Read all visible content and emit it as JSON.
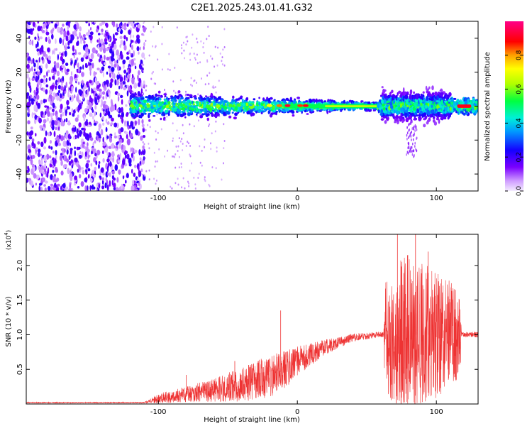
{
  "title": "C2E1.2025.243.01.41.G32",
  "chart_data": [
    {
      "type": "heatmap",
      "xlabel": "Height of straight line (km)",
      "ylabel": "Frequency (Hz)",
      "xlim": [
        -195,
        130
      ],
      "ylim": [
        -50,
        50
      ],
      "xticks": [
        -100,
        0,
        100
      ],
      "yticks": [
        -40,
        -20,
        0,
        20,
        40
      ],
      "colorbar": {
        "label": "Normalized spectral amplitude",
        "range": [
          0,
          1
        ],
        "ticks": [
          0.0,
          0.2,
          0.4,
          0.6,
          0.8
        ]
      },
      "features": [
        {
          "name": "broadband noise",
          "x_range": [
            -195,
            -110
          ],
          "freq_range": [
            -50,
            50
          ],
          "amplitude": 0.1
        },
        {
          "name": "signal band",
          "x_range": [
            -120,
            60
          ],
          "freq_halfwidth_start": 8,
          "freq_halfwidth_end": 2,
          "amplitude_start": 0.3,
          "amplitude_end": 0.5
        },
        {
          "name": "scintillation band",
          "x_range": [
            58,
            130
          ],
          "freq_halfwidth": 8,
          "amplitude": 0.45
        },
        {
          "name": "strong tone",
          "x_range": [
            115,
            125
          ],
          "freq": 0,
          "amplitude": 1.0
        }
      ]
    },
    {
      "type": "line",
      "xlabel": "Height of straight line (km)",
      "ylabel": "SNR (10 * v/v)",
      "scale_label": "(x10",
      "scale_exp": "4",
      "xlim": [
        -195,
        130
      ],
      "ylim": [
        0,
        2.45
      ],
      "xticks": [
        -100,
        0,
        100
      ],
      "yticks": [
        0.5,
        1.0,
        1.5,
        2.0
      ],
      "color": "#ee3333",
      "x_envelope": [
        -195,
        -110,
        -100,
        -80,
        -60,
        -40,
        -20,
        -10,
        0,
        20,
        40,
        58,
        62,
        63,
        70,
        80,
        90,
        100,
        110,
        117,
        118,
        130
      ],
      "mean_envelope": [
        0.02,
        0.02,
        0.08,
        0.14,
        0.2,
        0.28,
        0.4,
        0.48,
        0.62,
        0.82,
        0.96,
        1.0,
        1.0,
        1.0,
        1.0,
        1.0,
        1.0,
        1.0,
        1.0,
        1.0,
        1.0,
        1.0
      ],
      "noise_envelope": [
        0.005,
        0.005,
        0.05,
        0.08,
        0.12,
        0.18,
        0.22,
        0.2,
        0.15,
        0.08,
        0.04,
        0.03,
        0.03,
        0.55,
        0.75,
        0.85,
        0.75,
        0.65,
        0.55,
        0.45,
        0.03,
        0.03
      ],
      "spikes": [
        [
          -80,
          0.42
        ],
        [
          -45,
          0.62
        ],
        [
          -12,
          1.35
        ],
        [
          72,
          2.45
        ],
        [
          85,
          2.45
        ],
        [
          94,
          2.2
        ]
      ]
    }
  ]
}
